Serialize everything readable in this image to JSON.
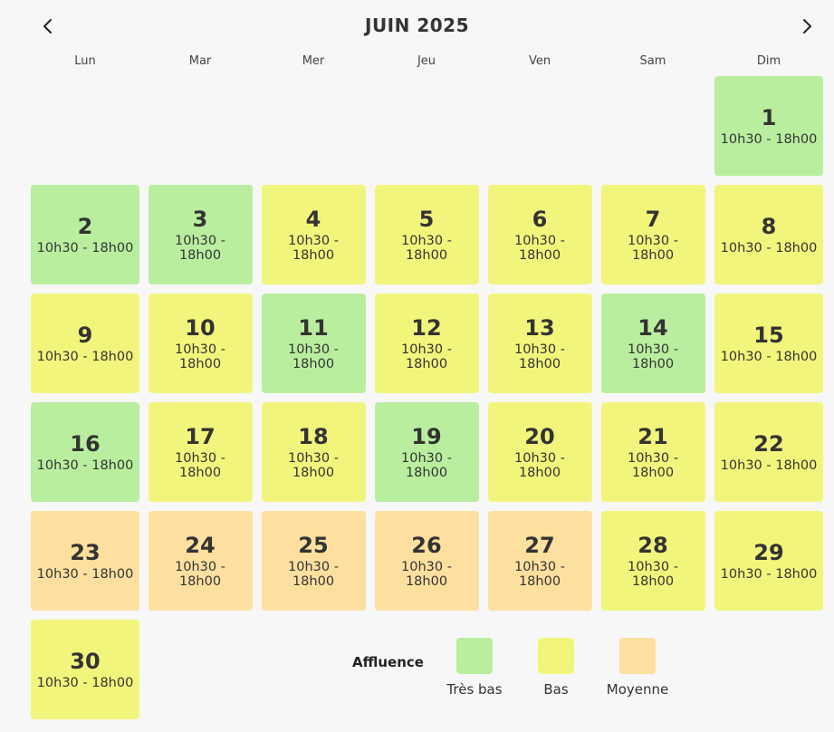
{
  "header": {
    "title": "JUIN 2025",
    "prev_icon": "chevron-left-icon",
    "next_icon": "chevron-right-icon"
  },
  "weekdays": [
    "Lun",
    "Mar",
    "Mer",
    "Jeu",
    "Ven",
    "Sam",
    "Dim"
  ],
  "colors": {
    "tres_bas": "#b9ee9f",
    "bas": "#f2f57b",
    "moyenne": "#fde09f"
  },
  "days": [
    {
      "num": "1",
      "hours": "10h30 - 18h00",
      "level": "tres_bas"
    },
    {
      "num": "2",
      "hours": "10h30 - 18h00",
      "level": "tres_bas"
    },
    {
      "num": "3",
      "hours": "10h30 - 18h00",
      "level": "tres_bas"
    },
    {
      "num": "4",
      "hours": "10h30 - 18h00",
      "level": "bas"
    },
    {
      "num": "5",
      "hours": "10h30 - 18h00",
      "level": "bas"
    },
    {
      "num": "6",
      "hours": "10h30 - 18h00",
      "level": "bas"
    },
    {
      "num": "7",
      "hours": "10h30 - 18h00",
      "level": "bas"
    },
    {
      "num": "8",
      "hours": "10h30 - 18h00",
      "level": "bas"
    },
    {
      "num": "9",
      "hours": "10h30 - 18h00",
      "level": "bas"
    },
    {
      "num": "10",
      "hours": "10h30 - 18h00",
      "level": "bas"
    },
    {
      "num": "11",
      "hours": "10h30 - 18h00",
      "level": "tres_bas"
    },
    {
      "num": "12",
      "hours": "10h30 - 18h00",
      "level": "bas"
    },
    {
      "num": "13",
      "hours": "10h30 - 18h00",
      "level": "bas"
    },
    {
      "num": "14",
      "hours": "10h30 - 18h00",
      "level": "tres_bas"
    },
    {
      "num": "15",
      "hours": "10h30 - 18h00",
      "level": "bas"
    },
    {
      "num": "16",
      "hours": "10h30 - 18h00",
      "level": "tres_bas"
    },
    {
      "num": "17",
      "hours": "10h30 - 18h00",
      "level": "bas"
    },
    {
      "num": "18",
      "hours": "10h30 - 18h00",
      "level": "bas"
    },
    {
      "num": "19",
      "hours": "10h30 - 18h00",
      "level": "tres_bas"
    },
    {
      "num": "20",
      "hours": "10h30 - 18h00",
      "level": "bas"
    },
    {
      "num": "21",
      "hours": "10h30 - 18h00",
      "level": "bas"
    },
    {
      "num": "22",
      "hours": "10h30 - 18h00",
      "level": "bas"
    },
    {
      "num": "23",
      "hours": "10h30 - 18h00",
      "level": "moyenne"
    },
    {
      "num": "24",
      "hours": "10h30 - 18h00",
      "level": "moyenne"
    },
    {
      "num": "25",
      "hours": "10h30 - 18h00",
      "level": "moyenne"
    },
    {
      "num": "26",
      "hours": "10h30 - 18h00",
      "level": "moyenne"
    },
    {
      "num": "27",
      "hours": "10h30 - 18h00",
      "level": "moyenne"
    },
    {
      "num": "28",
      "hours": "10h30 - 18h00",
      "level": "bas"
    },
    {
      "num": "29",
      "hours": "10h30 - 18h00",
      "level": "bas"
    },
    {
      "num": "30",
      "hours": "10h30 - 18h00",
      "level": "bas"
    }
  ],
  "legend": {
    "title": "Affluence",
    "items": [
      {
        "label": "Très bas",
        "level": "tres_bas"
      },
      {
        "label": "Bas",
        "level": "bas"
      },
      {
        "label": "Moyenne",
        "level": "moyenne"
      }
    ]
  }
}
